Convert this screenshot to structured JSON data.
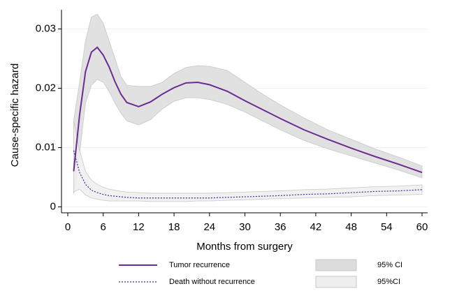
{
  "chart_data": {
    "type": "line",
    "x_label": "Months from surgery",
    "y_label": "Cause-specific hazard",
    "x": [
      1,
      2,
      3,
      4,
      5,
      6,
      7,
      8,
      9,
      10,
      12,
      14,
      16,
      18,
      20,
      22,
      24,
      27,
      30,
      33,
      36,
      40,
      44,
      48,
      52,
      56,
      60
    ],
    "series": [
      {
        "name": "Tumor recurrence",
        "color": "#6a2c91",
        "style": "solid",
        "values": [
          0.006,
          0.0155,
          0.0228,
          0.0261,
          0.0269,
          0.0256,
          0.0236,
          0.0211,
          0.019,
          0.0176,
          0.0169,
          0.0177,
          0.019,
          0.0201,
          0.0209,
          0.021,
          0.0206,
          0.0195,
          0.0179,
          0.0164,
          0.0149,
          0.013,
          0.0114,
          0.0099,
          0.0085,
          0.0072,
          0.0058
        ]
      },
      {
        "name": "Death without recurrence",
        "color": "#3b2a9a",
        "style": "dotted",
        "values": [
          0.0095,
          0.0058,
          0.0038,
          0.0028,
          0.0024,
          0.0021,
          0.0019,
          0.0018,
          0.0017,
          0.0016,
          0.0015,
          0.0015,
          0.0015,
          0.0015,
          0.0015,
          0.0015,
          0.0015,
          0.0016,
          0.0017,
          0.0018,
          0.0019,
          0.0021,
          0.0022,
          0.0024,
          0.0026,
          0.0027,
          0.0029
        ]
      }
    ],
    "bands": [
      {
        "name": "95% CI",
        "color": "#dcdcdc",
        "upper": [
          0.0146,
          0.021,
          0.028,
          0.032,
          0.0325,
          0.031,
          0.028,
          0.025,
          0.022,
          0.0205,
          0.0203,
          0.0203,
          0.021,
          0.0225,
          0.0235,
          0.0238,
          0.0237,
          0.023,
          0.021,
          0.019,
          0.0172,
          0.015,
          0.013,
          0.0114,
          0.0098,
          0.0084,
          0.0069
        ],
        "lower": [
          0.0022,
          0.009,
          0.0175,
          0.0205,
          0.0215,
          0.021,
          0.0195,
          0.0175,
          0.0158,
          0.0145,
          0.0138,
          0.0147,
          0.0165,
          0.0178,
          0.0184,
          0.0184,
          0.0181,
          0.0173,
          0.016,
          0.0145,
          0.013,
          0.0112,
          0.0098,
          0.0086,
          0.0074,
          0.0062,
          0.0049
        ]
      },
      {
        "name": "95%CI",
        "color": "#eeeeee",
        "upper": [
          0.0145,
          0.0095,
          0.006,
          0.0045,
          0.0038,
          0.0033,
          0.003,
          0.0028,
          0.0026,
          0.0025,
          0.0024,
          0.0023,
          0.0023,
          0.0023,
          0.0023,
          0.0023,
          0.0023,
          0.0024,
          0.0025,
          0.0026,
          0.0027,
          0.0029,
          0.003,
          0.0032,
          0.0034,
          0.0035,
          0.0037
        ],
        "lower": [
          0.0025,
          0.003,
          0.002,
          0.0015,
          0.0013,
          0.0011,
          0.001,
          0.001,
          0.001,
          0.001,
          0.001,
          0.0009,
          0.0009,
          0.0009,
          0.0009,
          0.001,
          0.001,
          0.0011,
          0.0012,
          0.0013,
          0.0014,
          0.0015,
          0.0016,
          0.0017,
          0.0019,
          0.002,
          0.0021
        ]
      }
    ],
    "xlim": [
      0,
      60
    ],
    "xticks": [
      0,
      6,
      12,
      18,
      24,
      30,
      36,
      42,
      48,
      54,
      60
    ],
    "ylim": [
      -0.001,
      0.033
    ],
    "yticks": [
      0,
      0.01,
      0.02,
      0.03
    ],
    "grid": true
  }
}
